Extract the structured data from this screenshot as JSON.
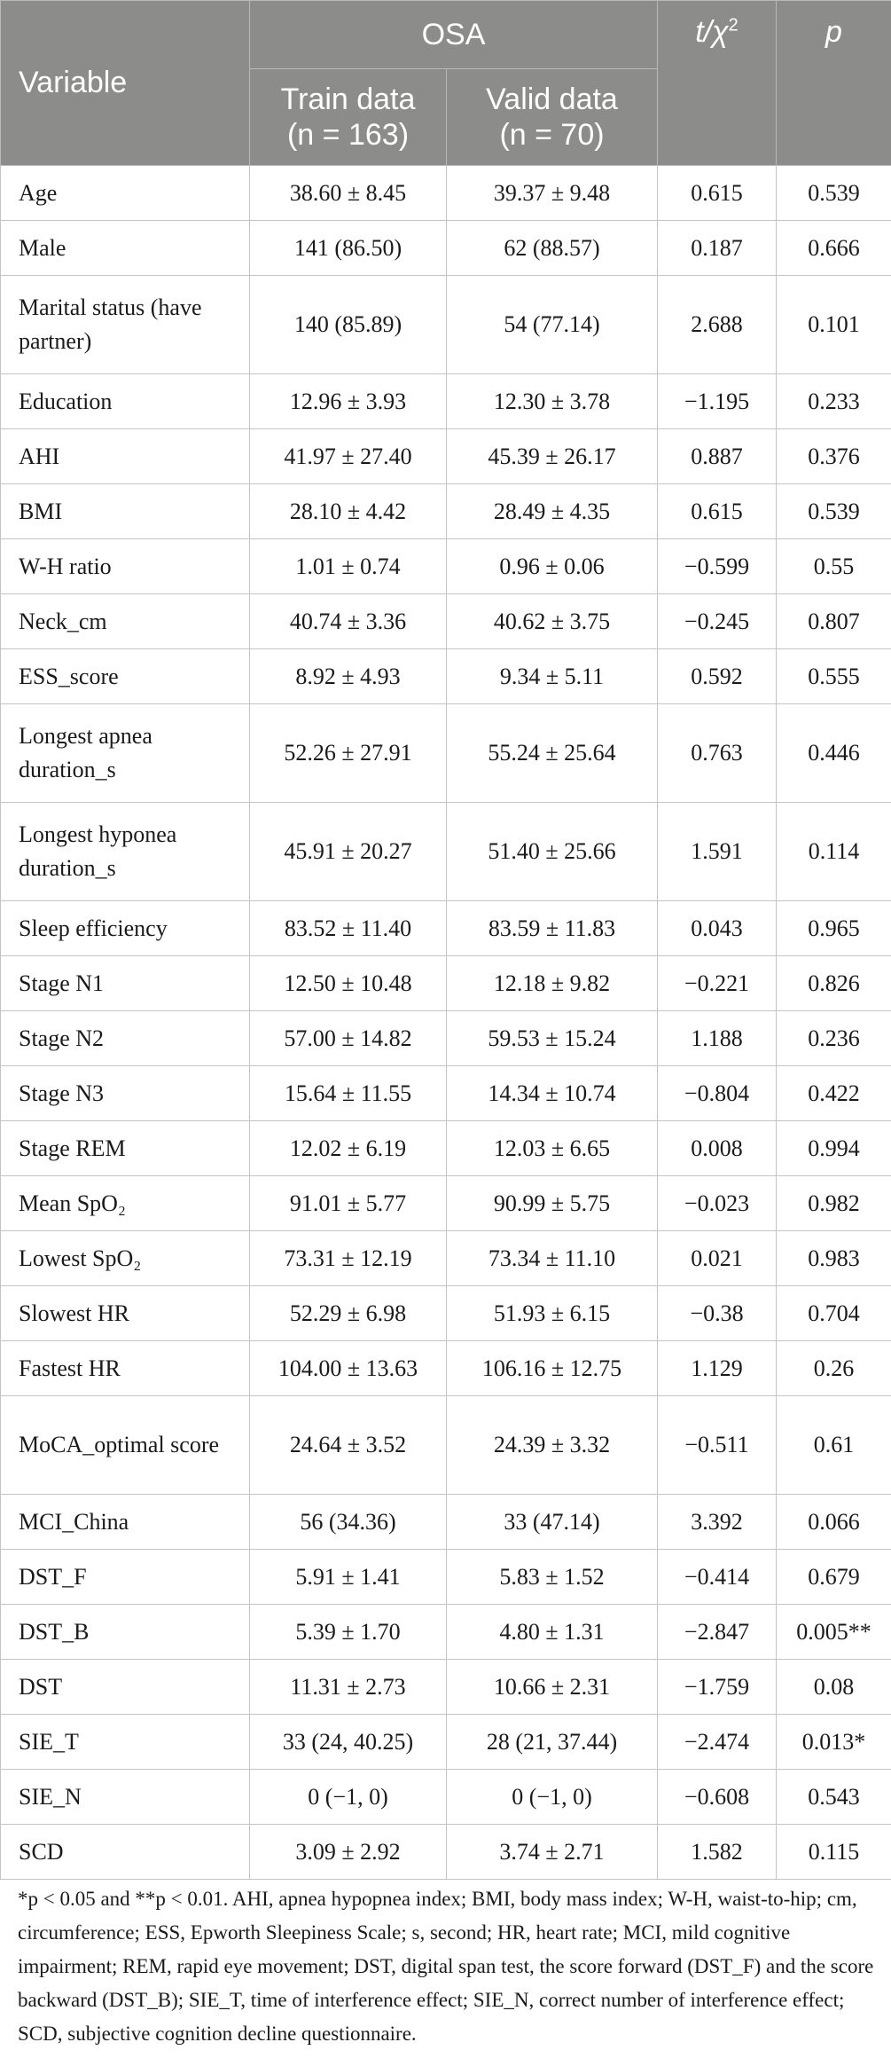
{
  "header": {
    "variable": "Variable",
    "group": "OSA",
    "stat": "t/χ",
    "stat_sup": "2",
    "p": "p",
    "train": "Train data",
    "train_n": "(n = 163)",
    "valid": "Valid data",
    "valid_n": "(n = 70)"
  },
  "rows": [
    {
      "variable": "Age",
      "train": "38.60 ± 8.45",
      "valid": "39.37 ± 9.48",
      "stat": "0.615",
      "p": "0.539"
    },
    {
      "variable": "Male",
      "train": "141 (86.50)",
      "valid": "62 (88.57)",
      "stat": "0.187",
      "p": "0.666"
    },
    {
      "variable": "Marital status (have partner)",
      "train": "140 (85.89)",
      "valid": "54 (77.14)",
      "stat": "2.688",
      "p": "0.101"
    },
    {
      "variable": "Education",
      "train": "12.96 ± 3.93",
      "valid": "12.30 ± 3.78",
      "stat": "−1.195",
      "p": "0.233"
    },
    {
      "variable": "AHI",
      "train": "41.97 ± 27.40",
      "valid": "45.39 ± 26.17",
      "stat": "0.887",
      "p": "0.376"
    },
    {
      "variable": "BMI",
      "train": "28.10 ± 4.42",
      "valid": "28.49 ± 4.35",
      "stat": "0.615",
      "p": "0.539"
    },
    {
      "variable": "W-H ratio",
      "train": "1.01 ± 0.74",
      "valid": "0.96 ± 0.06",
      "stat": "−0.599",
      "p": "0.55"
    },
    {
      "variable": "Neck_cm",
      "train": "40.74 ± 3.36",
      "valid": "40.62 ± 3.75",
      "stat": "−0.245",
      "p": "0.807"
    },
    {
      "variable": "ESS_score",
      "train": "8.92 ± 4.93",
      "valid": "9.34 ± 5.11",
      "stat": "0.592",
      "p": "0.555"
    },
    {
      "variable": "Longest apnea duration_s",
      "train": "52.26 ± 27.91",
      "valid": "55.24 ± 25.64",
      "stat": "0.763",
      "p": "0.446"
    },
    {
      "variable": "Longest hyponea duration_s",
      "train": "45.91 ± 20.27",
      "valid": "51.40 ± 25.66",
      "stat": "1.591",
      "p": "0.114"
    },
    {
      "variable": "Sleep efficiency",
      "train": "83.52 ± 11.40",
      "valid": "83.59 ± 11.83",
      "stat": "0.043",
      "p": "0.965"
    },
    {
      "variable": "Stage N1",
      "train": "12.50 ± 10.48",
      "valid": "12.18 ± 9.82",
      "stat": "−0.221",
      "p": "0.826"
    },
    {
      "variable": "Stage N2",
      "train": "57.00 ± 14.82",
      "valid": "59.53 ± 15.24",
      "stat": "1.188",
      "p": "0.236"
    },
    {
      "variable": "Stage N3",
      "train": "15.64 ± 11.55",
      "valid": "14.34 ± 10.74",
      "stat": "−0.804",
      "p": "0.422"
    },
    {
      "variable": "Stage REM",
      "train": "12.02 ± 6.19",
      "valid": "12.03 ± 6.65",
      "stat": "0.008",
      "p": "0.994"
    },
    {
      "variable": "Mean SpO₂",
      "train": "91.01 ± 5.77",
      "valid": "90.99 ± 5.75",
      "stat": "−0.023",
      "p": "0.982"
    },
    {
      "variable": "Lowest SpO₂",
      "train": "73.31 ± 12.19",
      "valid": "73.34 ± 11.10",
      "stat": "0.021",
      "p": "0.983"
    },
    {
      "variable": "Slowest HR",
      "train": "52.29 ± 6.98",
      "valid": "51.93 ± 6.15",
      "stat": "−0.38",
      "p": "0.704"
    },
    {
      "variable": "Fastest HR",
      "train": "104.00 ± 13.63",
      "valid": "106.16 ± 12.75",
      "stat": "1.129",
      "p": "0.26"
    },
    {
      "variable": "MoCA_optimal score",
      "train": "24.64 ± 3.52",
      "valid": "24.39 ± 3.32",
      "stat": "−0.511",
      "p": "0.61"
    },
    {
      "variable": "MCI_China",
      "train": "56 (34.36)",
      "valid": "33 (47.14)",
      "stat": "3.392",
      "p": "0.066"
    },
    {
      "variable": "DST_F",
      "train": "5.91 ± 1.41",
      "valid": "5.83 ± 1.52",
      "stat": "−0.414",
      "p": "0.679"
    },
    {
      "variable": "DST_B",
      "train": "5.39 ± 1.70",
      "valid": "4.80 ± 1.31",
      "stat": "−2.847",
      "p": "0.005**"
    },
    {
      "variable": "DST",
      "train": "11.31 ± 2.73",
      "valid": "10.66 ± 2.31",
      "stat": "−1.759",
      "p": "0.08"
    },
    {
      "variable": "SIE_T",
      "train": "33 (24, 40.25)",
      "valid": "28 (21, 37.44)",
      "stat": "−2.474",
      "p": "0.013*"
    },
    {
      "variable": "SIE_N",
      "train": "0 (−1, 0)",
      "valid": "0 (−1, 0)",
      "stat": "−0.608",
      "p": "0.543"
    },
    {
      "variable": "SCD",
      "train": "3.09 ± 2.92",
      "valid": "3.74 ± 2.71",
      "stat": "1.582",
      "p": "0.115"
    }
  ],
  "tall_rows": [
    2,
    9,
    10,
    20
  ],
  "footnote": "*p < 0.05 and **p < 0.01. AHI, apnea hypopnea index; BMI, body mass index; W-H, waist-to-hip; cm, circumference; ESS, Epworth Sleepiness Scale; s, second; HR, heart rate; MCI, mild cognitive impairment; REM, rapid eye movement; DST, digital span test, the score forward (DST_F) and the score backward (DST_B); SIE_T, time of interference effect; SIE_N, correct number of interference effect; SCD, subjective cognition decline questionnaire."
}
